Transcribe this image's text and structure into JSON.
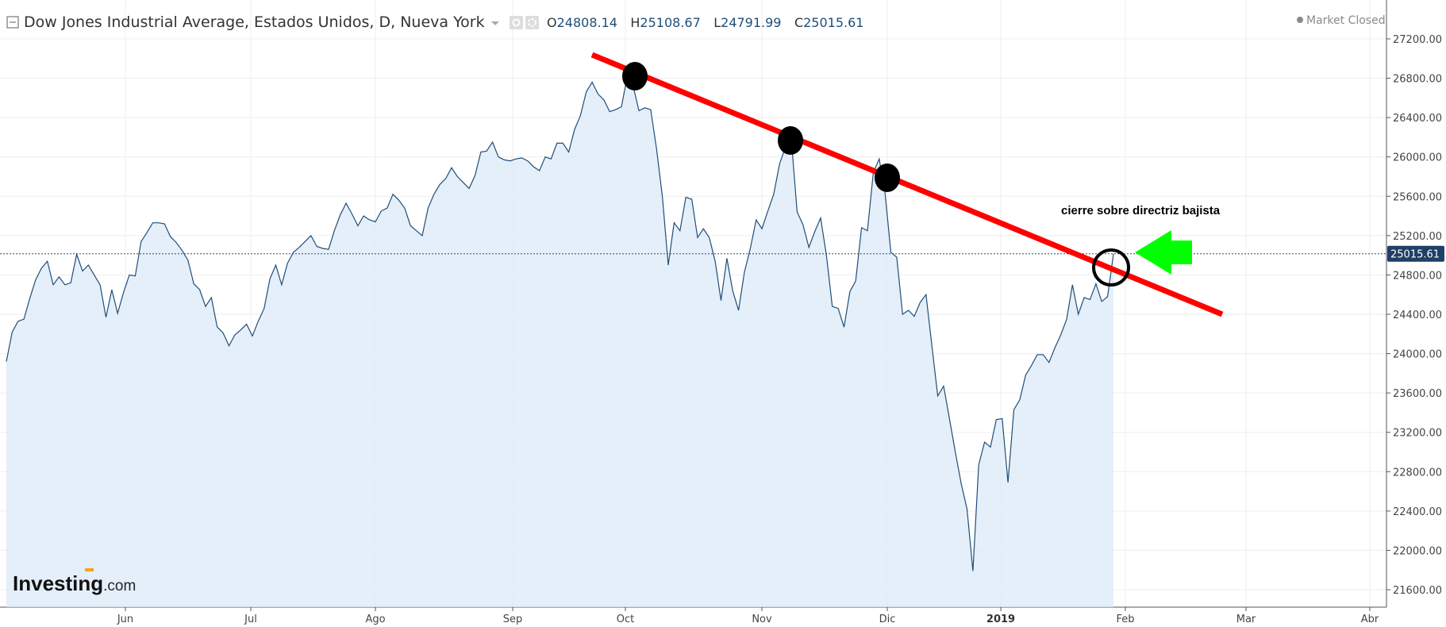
{
  "header": {
    "title": "Dow Jones Industrial Average, Estados Unidos, D, Nueva York",
    "open_key": "O",
    "open": "24808.14",
    "high_key": "H",
    "high": "25108.67",
    "low_key": "L",
    "low": "24791.99",
    "close_key": "C",
    "close": "25015.61",
    "market_status": "Market Closed"
  },
  "logo": {
    "main": "Investing",
    "suffix": ".com"
  },
  "annotation": {
    "text": "cierre sobre directriz bajista"
  },
  "colors": {
    "line": "#1f4e79",
    "area": "#dceaf7",
    "trendline": "#ff0000",
    "arrow": "#00ff00",
    "last_price_bg": "#1f3f66",
    "marker": "#000000"
  },
  "icons": [
    "collapse-icon",
    "dropdown-caret-icon",
    "settings-icon",
    "gear-icon",
    "green-arrow-icon"
  ],
  "chart_data": {
    "type": "area",
    "title": "Dow Jones Industrial Average, Estados Unidos, D, Nueva York",
    "xlabel": "",
    "ylabel": "",
    "ylim": [
      21400,
      27400
    ],
    "y_ticks": [
      "27200.00",
      "26800.00",
      "26400.00",
      "26000.00",
      "25600.00",
      "25200.00",
      "24800.00",
      "24400.00",
      "24000.00",
      "23600.00",
      "23200.00",
      "22800.00",
      "22400.00",
      "22000.00",
      "21600.00"
    ],
    "x_ticks": [
      "Jun",
      "Jul",
      "Ago",
      "Sep",
      "Oct",
      "Nov",
      "Dic",
      "2019",
      "Feb",
      "Mar",
      "Abr"
    ],
    "last_price_label": "25015.61",
    "last_price": 25015.61,
    "grid": true,
    "series": [
      {
        "values": [
          23920,
          24220,
          24330,
          24350,
          24560,
          24750,
          24870,
          24940,
          24700,
          24780,
          24700,
          24720,
          25010,
          24840,
          24900,
          24800,
          24700,
          24370,
          24650,
          24410,
          24620,
          24800,
          24790,
          25140,
          25230,
          25330,
          25330,
          25320,
          25190,
          25130,
          25050,
          24950,
          24710,
          24650,
          24480,
          24570,
          24270,
          24210,
          24080,
          24190,
          24240,
          24300,
          24180,
          24330,
          24460,
          24760,
          24900,
          24700,
          24920,
          25030,
          25080,
          25140,
          25200,
          25090,
          25070,
          25060,
          25250,
          25410,
          25530,
          25420,
          25300,
          25400,
          25360,
          25340,
          25450,
          25480,
          25620,
          25560,
          25480,
          25300,
          25250,
          25200,
          25480,
          25620,
          25720,
          25780,
          25890,
          25800,
          25740,
          25680,
          25810,
          26050,
          26060,
          26150,
          26000,
          25970,
          25960,
          25980,
          25990,
          25960,
          25900,
          25860,
          26000,
          25980,
          26140,
          26140,
          26050,
          26280,
          26420,
          26660,
          26760,
          26640,
          26580,
          26460,
          26480,
          26510,
          26820,
          26720,
          26470,
          26500,
          26480,
          26080,
          25590,
          24900,
          25330,
          25250,
          25590,
          25570,
          25180,
          25270,
          25180,
          24940,
          24540,
          24970,
          24640,
          24440,
          24830,
          25070,
          25360,
          25270,
          25450,
          25620,
          25930,
          26100,
          26190,
          25440,
          25310,
          25080,
          25240,
          25380,
          25000,
          24480,
          24460,
          24270,
          24630,
          24740,
          25280,
          25250,
          25840,
          25980,
          25640,
          25030,
          24980,
          24400,
          24440,
          24380,
          24520,
          24600,
          24080,
          23570,
          23670,
          23340,
          23000,
          22680,
          22420,
          21790,
          22870,
          23100,
          23050,
          23330,
          23340,
          22690,
          23430,
          23530,
          23780,
          23880,
          23990,
          23990,
          23910,
          24060,
          24190,
          24350,
          24700,
          24400,
          24570,
          24550,
          24710,
          24530,
          24580,
          25015.61
        ]
      }
    ],
    "trendline": {
      "from": {
        "x": "Sep",
        "y": 27000
      },
      "to": {
        "x": "Mar",
        "y": 24400
      }
    },
    "highlighted_peaks": [
      "Oct",
      "Nov",
      "Dic"
    ]
  }
}
